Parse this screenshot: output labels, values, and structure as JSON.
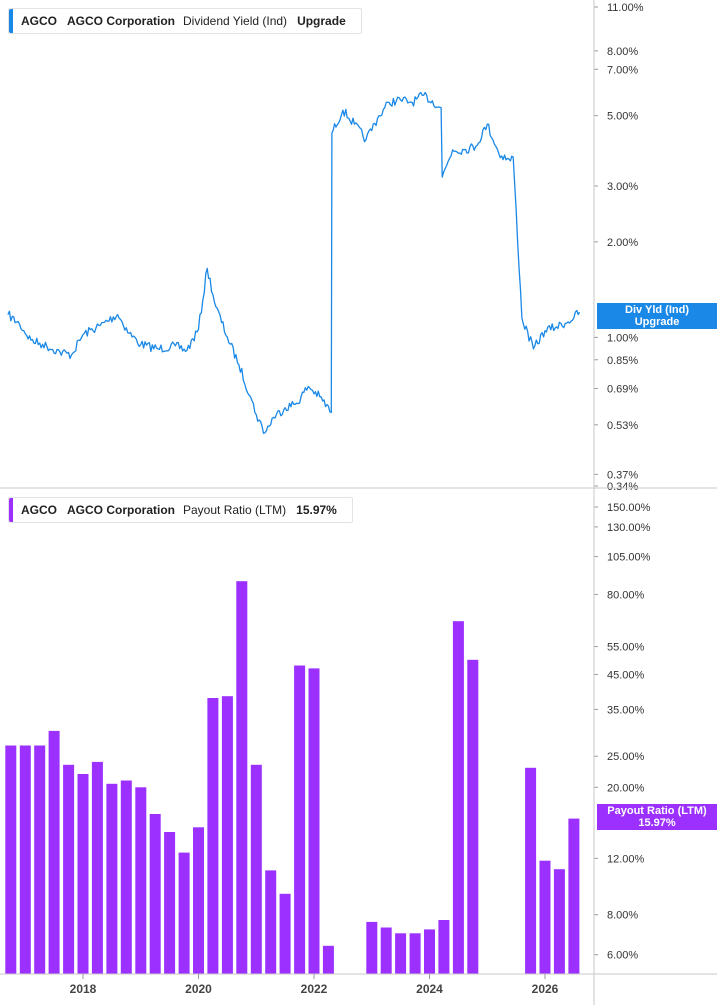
{
  "colors": {
    "yield": "#1a88e6",
    "payout": "#9b30ff"
  },
  "top_legend": {
    "ticker": "AGCO",
    "company": "AGCO Corporation",
    "metric": "Dividend Yield (Ind)",
    "value": "Upgrade"
  },
  "bottom_legend": {
    "ticker": "AGCO",
    "company": "AGCO Corporation",
    "metric": "Payout Ratio (LTM)",
    "value": "15.97%"
  },
  "top_tag": {
    "line1": "Div Yld (Ind)",
    "line2": "Upgrade"
  },
  "bottom_tag": {
    "line1": "Payout Ratio (LTM)",
    "line2": "15.97%"
  },
  "chart_data": [
    {
      "type": "line",
      "title": "Dividend Yield (Ind)",
      "series_name": "AGCO Corporation",
      "y_scale": "log",
      "y_ticks": [
        "11.00%",
        "8.00%",
        "7.00%",
        "5.00%",
        "3.00%",
        "2.00%",
        "1.00%",
        "0.85%",
        "0.69%",
        "0.53%",
        "0.37%",
        "0.34%"
      ],
      "x_ticks": [
        "2018",
        "2020",
        "2022",
        "2024",
        "2026"
      ],
      "x": [
        2016.7,
        2016.9,
        2017.1,
        2017.3,
        2017.6,
        2017.8,
        2018.0,
        2018.3,
        2018.6,
        2018.8,
        2019.0,
        2019.3,
        2019.6,
        2019.8,
        2020.0,
        2020.15,
        2020.3,
        2020.5,
        2020.7,
        2020.9,
        2021.0,
        2021.15,
        2021.3,
        2021.5,
        2021.7,
        2021.9,
        2022.1,
        2022.3,
        2022.31,
        2022.5,
        2022.7,
        2022.9,
        2023.1,
        2023.3,
        2023.5,
        2023.7,
        2023.9,
        2024.2,
        2024.22,
        2024.4,
        2024.6,
        2024.8,
        2025.0,
        2025.2,
        2025.4,
        2025.45,
        2025.6,
        2025.8,
        2026.0,
        2026.2,
        2026.4,
        2026.6
      ],
      "y": [
        1.18,
        1.1,
        0.98,
        0.95,
        0.9,
        0.88,
        1.02,
        1.09,
        1.18,
        1.03,
        0.95,
        0.92,
        0.94,
        0.91,
        1.06,
        1.65,
        1.25,
        1.0,
        0.82,
        0.65,
        0.57,
        0.5,
        0.56,
        0.6,
        0.62,
        0.7,
        0.65,
        0.58,
        4.4,
        5.2,
        4.7,
        4.2,
        4.9,
        5.5,
        5.6,
        5.5,
        5.8,
        5.3,
        3.2,
        3.9,
        3.9,
        4.0,
        4.7,
        3.8,
        3.6,
        3.7,
        1.15,
        0.92,
        1.05,
        1.08,
        1.12,
        1.2
      ],
      "ylim": [
        0.34,
        11.0
      ]
    },
    {
      "type": "bar",
      "title": "Payout Ratio (LTM)",
      "series_name": "AGCO Corporation",
      "y_scale": "log",
      "y_ticks": [
        "150.00%",
        "130.00%",
        "105.00%",
        "80.00%",
        "55.00%",
        "45.00%",
        "35.00%",
        "25.00%",
        "20.00%",
        "12.00%",
        "8.00%",
        "6.00%"
      ],
      "x_ticks": [
        "2018",
        "2020",
        "2022",
        "2024",
        "2026"
      ],
      "x": [
        2016.75,
        2017.0,
        2017.25,
        2017.5,
        2017.75,
        2018.0,
        2018.25,
        2018.5,
        2018.75,
        2019.0,
        2019.25,
        2019.5,
        2019.75,
        2020.0,
        2020.25,
        2020.5,
        2020.75,
        2021.0,
        2021.25,
        2021.5,
        2021.75,
        2022.0,
        2022.25,
        2023.0,
        2023.25,
        2023.5,
        2023.75,
        2024.0,
        2024.25,
        2024.5,
        2024.75,
        2025.75,
        2026.0,
        2026.25,
        2026.5
      ],
      "values": [
        27,
        27,
        27,
        30,
        23.5,
        22,
        24,
        20.5,
        21,
        20,
        16.5,
        14.5,
        12.5,
        15,
        38,
        38.5,
        88,
        23.5,
        11,
        9.3,
        48,
        47,
        6.4,
        7.6,
        7.3,
        7.0,
        7.0,
        7.2,
        7.7,
        66,
        50,
        23,
        11.8,
        11.1,
        15.97
      ],
      "ylim": [
        5.3,
        150
      ]
    }
  ]
}
